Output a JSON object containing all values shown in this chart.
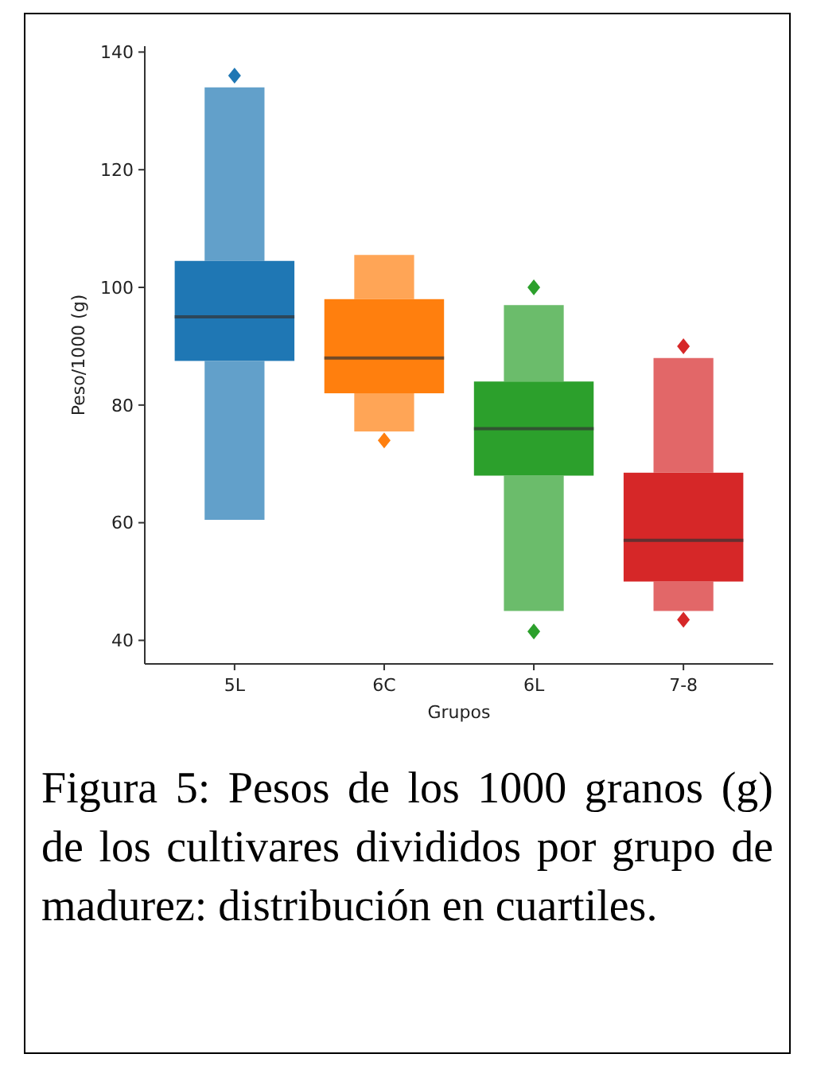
{
  "chart_data": {
    "type": "box",
    "categories": [
      "5L",
      "6C",
      "6L",
      "7-8"
    ],
    "xlabel": "Grupos",
    "ylabel": "Peso/1000 (g)",
    "ylim": [
      36,
      141
    ],
    "yticks": [
      40,
      60,
      80,
      100,
      120,
      140
    ],
    "colors": [
      "#1f77b4",
      "#ff7f0e",
      "#2ca02c",
      "#d62728"
    ],
    "boxes": [
      {
        "low": 60.5,
        "q1": 87.5,
        "median": 95,
        "q3": 104.5,
        "high": 134,
        "outliers": [
          136
        ]
      },
      {
        "low": 75.5,
        "q1": 82,
        "median": 88,
        "q3": 98,
        "high": 105.5,
        "outliers": [
          74
        ]
      },
      {
        "low": 45,
        "q1": 68,
        "median": 76,
        "q3": 84,
        "high": 97,
        "outliers": [
          100,
          41.5
        ]
      },
      {
        "low": 45,
        "q1": 50,
        "median": 57,
        "q3": 68.5,
        "high": 88,
        "outliers": [
          90,
          43.5
        ]
      }
    ],
    "annotations": [
      "Figura 5: Pesos de los 1000 granos (g) de los cultivares divididos por grupo de madurez: distribución en cuartiles."
    ]
  }
}
